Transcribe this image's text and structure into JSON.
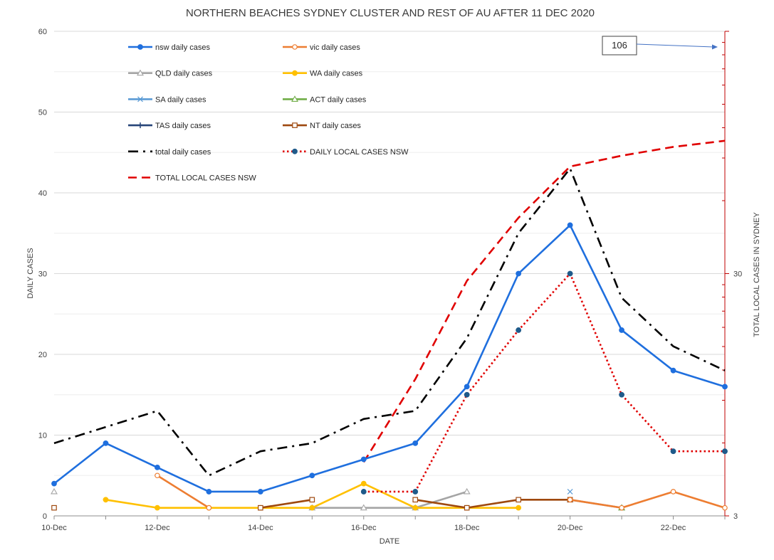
{
  "chart_data": {
    "type": "line",
    "title": "NORTHERN BEACHES SYDNEY CLUSTER AND REST OF AU AFTER 11 DEC 2020",
    "xlabel": "DATE",
    "ylabel": "DAILY CASES",
    "y2label": "TOTAL LOCAL CASES IN SYDNEY",
    "ylim": [
      0,
      60
    ],
    "y2_scale": "log",
    "y2lim": [
      3,
      300
    ],
    "y2_tick_labels": [
      "3",
      "30"
    ],
    "y_ticks": [
      0,
      10,
      20,
      30,
      40,
      50,
      60
    ],
    "x": [
      "10-Dec",
      "11-Dec",
      "12-Dec",
      "13-Dec",
      "14-Dec",
      "15-Dec",
      "16-Dec",
      "17-Dec",
      "18-Dec",
      "19-Dec",
      "20-Dec",
      "21-Dec",
      "22-Dec",
      "23-Dec"
    ],
    "x_tick_labels": [
      "10-Dec",
      "12-Dec",
      "14-Dec",
      "16-Dec",
      "18-Dec",
      "20-Dec",
      "22-Dec"
    ],
    "grid": true,
    "legend_position": "top-left",
    "annotation": {
      "text": "106",
      "target": "23-Dec"
    },
    "series": [
      {
        "name": "nsw daily cases",
        "color": "#1f6fde",
        "style": "solid",
        "marker": "circle",
        "axis": "left",
        "values": [
          4,
          9,
          6,
          3,
          3,
          5,
          7,
          9,
          16,
          30,
          36,
          23,
          18,
          16
        ]
      },
      {
        "name": "vic daily cases",
        "color": "#ed7d31",
        "style": "solid",
        "marker": "open-circle",
        "axis": "left",
        "values": [
          null,
          null,
          5,
          1,
          null,
          null,
          null,
          null,
          null,
          null,
          2,
          1,
          3,
          1
        ]
      },
      {
        "name": "QLD daily cases",
        "color": "#a5a5a5",
        "style": "solid",
        "marker": "open-triangle",
        "axis": "left",
        "values": [
          3,
          null,
          null,
          null,
          null,
          1,
          1,
          1,
          3,
          null,
          2,
          1,
          null,
          null
        ]
      },
      {
        "name": "WA  daily cases",
        "color": "#ffc000",
        "style": "solid",
        "marker": "circle",
        "axis": "left",
        "values": [
          null,
          2,
          1,
          1,
          1,
          1,
          4,
          1,
          1,
          1,
          null,
          null,
          null,
          null
        ]
      },
      {
        "name": "SA  daily cases",
        "color": "#5b9bd5",
        "style": "solid",
        "marker": "x",
        "axis": "left",
        "values": [
          null,
          null,
          null,
          null,
          null,
          null,
          null,
          null,
          null,
          null,
          3,
          null,
          null,
          null
        ]
      },
      {
        "name": "ACT daily cases",
        "color": "#70ad47",
        "style": "solid",
        "marker": "open-triangle",
        "axis": "left",
        "values": [
          null,
          null,
          null,
          null,
          null,
          null,
          null,
          null,
          null,
          null,
          null,
          1,
          null,
          null
        ]
      },
      {
        "name": "TAS daily cases",
        "color": "#264478",
        "style": "solid",
        "marker": "plus",
        "axis": "left",
        "values": [
          null,
          null,
          null,
          null,
          null,
          null,
          null,
          null,
          null,
          null,
          null,
          null,
          null,
          null
        ]
      },
      {
        "name": "NT daily cases",
        "color": "#9e480e",
        "style": "solid",
        "marker": "open-square",
        "axis": "left",
        "values": [
          1,
          null,
          null,
          null,
          1,
          2,
          null,
          2,
          1,
          2,
          2,
          null,
          null,
          null
        ]
      },
      {
        "name": "total daily cases",
        "color": "#000000",
        "style": "dashdot",
        "marker": "none",
        "axis": "left",
        "values": [
          9,
          11,
          13,
          5,
          8,
          9,
          12,
          13,
          22,
          35,
          43,
          27,
          21,
          18
        ]
      },
      {
        "name": "DAILY LOCAL CASES NSW",
        "color": "#e00000",
        "style": "dotted",
        "marker": "circle",
        "marker_color": "#1f5a8a",
        "axis": "left",
        "values": [
          null,
          null,
          null,
          null,
          null,
          null,
          3,
          3,
          15,
          23,
          30,
          15,
          8,
          8
        ]
      },
      {
        "name": "TOTAL LOCAL CASES  NSW",
        "color": "#e00000",
        "style": "dashed",
        "marker": "none",
        "axis": "right",
        "values": [
          null,
          null,
          null,
          null,
          null,
          null,
          5,
          11,
          28,
          51,
          83,
          92,
          100,
          106
        ]
      }
    ]
  }
}
